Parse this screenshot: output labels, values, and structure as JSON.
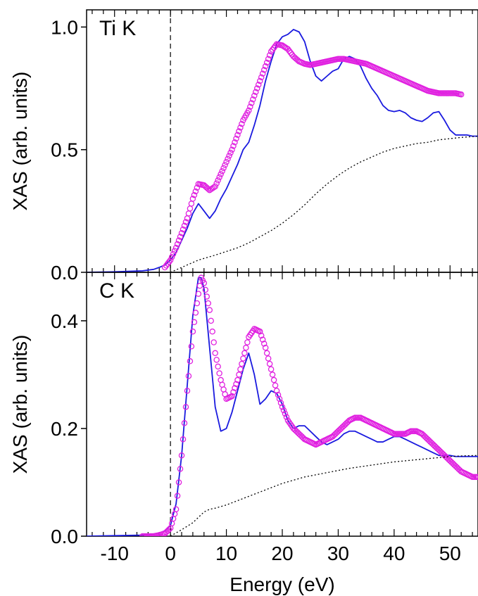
{
  "chart_data": [
    {
      "type": "line",
      "panel_label": "Ti K",
      "ylabel": "XAS (arb. units)",
      "xlim": [
        -15,
        55
      ],
      "ylim": [
        0,
        1.07
      ],
      "yticks": [
        0.0,
        0.5,
        1.0
      ],
      "ytick_labels": [
        "0.0",
        "0.5",
        "1.0"
      ],
      "edge_marker_x": 0,
      "grid": false,
      "legend": "none",
      "series": [
        {
          "style": "solid",
          "color": "#1a1adf",
          "x": [
            -15,
            -10,
            -5,
            -3,
            -2,
            -1,
            0,
            1,
            2,
            3,
            4,
            5,
            6,
            7,
            8,
            9,
            10,
            11,
            12,
            13,
            14,
            15,
            16,
            17,
            18,
            19,
            20,
            21,
            22,
            23,
            24,
            25,
            26,
            27,
            28,
            29,
            30,
            31,
            32,
            33,
            34,
            35,
            36,
            37,
            38,
            39,
            40,
            41,
            42,
            43,
            44,
            45,
            46,
            47,
            48,
            49,
            50,
            51,
            52,
            53,
            54,
            55
          ],
          "y": [
            0,
            0.002,
            0.006,
            0.012,
            0.02,
            0.03,
            0.05,
            0.08,
            0.13,
            0.18,
            0.24,
            0.28,
            0.25,
            0.22,
            0.25,
            0.3,
            0.34,
            0.39,
            0.44,
            0.5,
            0.53,
            0.6,
            0.68,
            0.78,
            0.86,
            0.93,
            0.96,
            0.97,
            0.99,
            0.98,
            0.94,
            0.86,
            0.8,
            0.78,
            0.8,
            0.82,
            0.83,
            0.87,
            0.88,
            0.87,
            0.84,
            0.79,
            0.75,
            0.72,
            0.68,
            0.66,
            0.655,
            0.66,
            0.65,
            0.63,
            0.62,
            0.615,
            0.63,
            0.65,
            0.655,
            0.62,
            0.58,
            0.56,
            0.56,
            0.56,
            0.555,
            0.555
          ]
        },
        {
          "style": "circles",
          "color": "#e020e0",
          "x": [
            -1,
            0,
            1,
            2,
            3,
            4,
            5,
            6,
            7,
            8,
            9,
            10,
            11,
            12,
            13,
            14,
            15,
            16,
            17,
            18,
            19,
            20,
            21,
            22,
            23,
            24,
            25,
            26,
            27,
            28,
            29,
            30,
            31,
            32,
            33,
            34,
            35,
            36,
            37,
            38,
            39,
            40,
            41,
            42,
            43,
            44,
            45,
            46,
            47,
            48,
            49,
            50,
            51,
            52
          ],
          "y": [
            0.02,
            0.05,
            0.1,
            0.16,
            0.22,
            0.3,
            0.36,
            0.355,
            0.335,
            0.35,
            0.4,
            0.45,
            0.5,
            0.56,
            0.62,
            0.66,
            0.72,
            0.78,
            0.84,
            0.9,
            0.93,
            0.925,
            0.91,
            0.88,
            0.86,
            0.85,
            0.845,
            0.85,
            0.855,
            0.86,
            0.865,
            0.87,
            0.87,
            0.865,
            0.86,
            0.855,
            0.85,
            0.84,
            0.83,
            0.82,
            0.81,
            0.8,
            0.79,
            0.78,
            0.77,
            0.76,
            0.75,
            0.74,
            0.735,
            0.73,
            0.73,
            0.73,
            0.73,
            0.725
          ]
        },
        {
          "style": "dotted",
          "color": "#000000",
          "x": [
            0,
            2,
            5,
            8,
            10,
            12,
            14,
            16,
            18,
            20,
            22,
            24,
            26,
            28,
            30,
            32,
            34,
            36,
            38,
            40,
            42,
            44,
            46,
            48,
            50,
            52,
            55
          ],
          "y": [
            0,
            0.02,
            0.05,
            0.07,
            0.085,
            0.1,
            0.12,
            0.145,
            0.17,
            0.2,
            0.235,
            0.275,
            0.32,
            0.36,
            0.395,
            0.425,
            0.45,
            0.47,
            0.49,
            0.505,
            0.515,
            0.525,
            0.53,
            0.54,
            0.545,
            0.55,
            0.555
          ]
        }
      ]
    },
    {
      "type": "line",
      "panel_label": "C K",
      "ylabel": "XAS (arb. units)",
      "xlabel": "Energy (eV)",
      "xlim": [
        -15,
        55
      ],
      "ylim": [
        0,
        0.49
      ],
      "yticks": [
        0.0,
        0.2,
        0.4
      ],
      "ytick_labels": [
        "0.0",
        "0.2",
        "0.4"
      ],
      "xticks": [
        -10,
        0,
        10,
        20,
        30,
        40,
        50
      ],
      "xtick_labels": [
        "-10",
        "0",
        "10",
        "20",
        "30",
        "40",
        "50"
      ],
      "edge_marker_x": 0,
      "grid": false,
      "legend": "none",
      "series": [
        {
          "style": "solid",
          "color": "#1a1adf",
          "x": [
            -15,
            -5,
            -3,
            -2,
            -1,
            0,
            1,
            2,
            3,
            4,
            5,
            5.5,
            6,
            7,
            8,
            9,
            10,
            11,
            12,
            13,
            14,
            15,
            16,
            17,
            18,
            19,
            20,
            21,
            22,
            23,
            24,
            25,
            26,
            27,
            28,
            29,
            30,
            31,
            32,
            33,
            34,
            35,
            36,
            37,
            38,
            39,
            40,
            41,
            42,
            43,
            44,
            45,
            46,
            47,
            48,
            49,
            50,
            51,
            52,
            53,
            54,
            55
          ],
          "y": [
            0,
            0.002,
            0.004,
            0.006,
            0.01,
            0.02,
            0.06,
            0.15,
            0.28,
            0.41,
            0.48,
            0.48,
            0.46,
            0.35,
            0.24,
            0.195,
            0.2,
            0.23,
            0.27,
            0.31,
            0.34,
            0.3,
            0.245,
            0.255,
            0.27,
            0.265,
            0.245,
            0.215,
            0.2,
            0.205,
            0.205,
            0.195,
            0.185,
            0.175,
            0.17,
            0.175,
            0.18,
            0.19,
            0.195,
            0.195,
            0.19,
            0.185,
            0.18,
            0.175,
            0.175,
            0.18,
            0.185,
            0.185,
            0.18,
            0.175,
            0.17,
            0.165,
            0.16,
            0.155,
            0.15,
            0.15,
            0.15,
            0.148,
            0.148,
            0.148,
            0.148,
            0.148
          ]
        },
        {
          "style": "circles",
          "color": "#e020e0",
          "x": [
            -5,
            -4,
            -3,
            -2,
            -1,
            0,
            1,
            2,
            3,
            4,
            5,
            5.5,
            6,
            7,
            8,
            9,
            10,
            11,
            12,
            13,
            14,
            15,
            16,
            17,
            18,
            19,
            20,
            21,
            22,
            23,
            24,
            25,
            26,
            27,
            28,
            29,
            30,
            31,
            32,
            33,
            34,
            35,
            36,
            37,
            38,
            39,
            40,
            41,
            42,
            43,
            44,
            45,
            46,
            47,
            48,
            49,
            50,
            51,
            52,
            53,
            54,
            55
          ],
          "y": [
            0,
            0,
            0,
            0.002,
            0.005,
            0.015,
            0.05,
            0.15,
            0.27,
            0.38,
            0.45,
            0.48,
            0.47,
            0.42,
            0.34,
            0.29,
            0.255,
            0.26,
            0.29,
            0.33,
            0.37,
            0.385,
            0.38,
            0.35,
            0.31,
            0.27,
            0.24,
            0.215,
            0.2,
            0.19,
            0.18,
            0.175,
            0.17,
            0.175,
            0.18,
            0.185,
            0.195,
            0.205,
            0.215,
            0.22,
            0.22,
            0.215,
            0.21,
            0.205,
            0.2,
            0.195,
            0.19,
            0.19,
            0.19,
            0.195,
            0.195,
            0.19,
            0.18,
            0.17,
            0.16,
            0.15,
            0.14,
            0.13,
            0.12,
            0.115,
            0.11,
            0.11
          ]
        },
        {
          "style": "dotted",
          "color": "#000000",
          "x": [
            0,
            2,
            4,
            5,
            6,
            7,
            8,
            10,
            12,
            14,
            16,
            18,
            20,
            22,
            24,
            26,
            28,
            30,
            32,
            34,
            36,
            38,
            40,
            42,
            44,
            46,
            48,
            50,
            52,
            55
          ],
          "y": [
            0,
            0.012,
            0.025,
            0.035,
            0.045,
            0.05,
            0.052,
            0.058,
            0.066,
            0.074,
            0.082,
            0.09,
            0.098,
            0.104,
            0.11,
            0.114,
            0.118,
            0.122,
            0.126,
            0.129,
            0.132,
            0.135,
            0.138,
            0.14,
            0.142,
            0.144,
            0.146,
            0.148,
            0.149,
            0.15
          ]
        }
      ]
    }
  ]
}
